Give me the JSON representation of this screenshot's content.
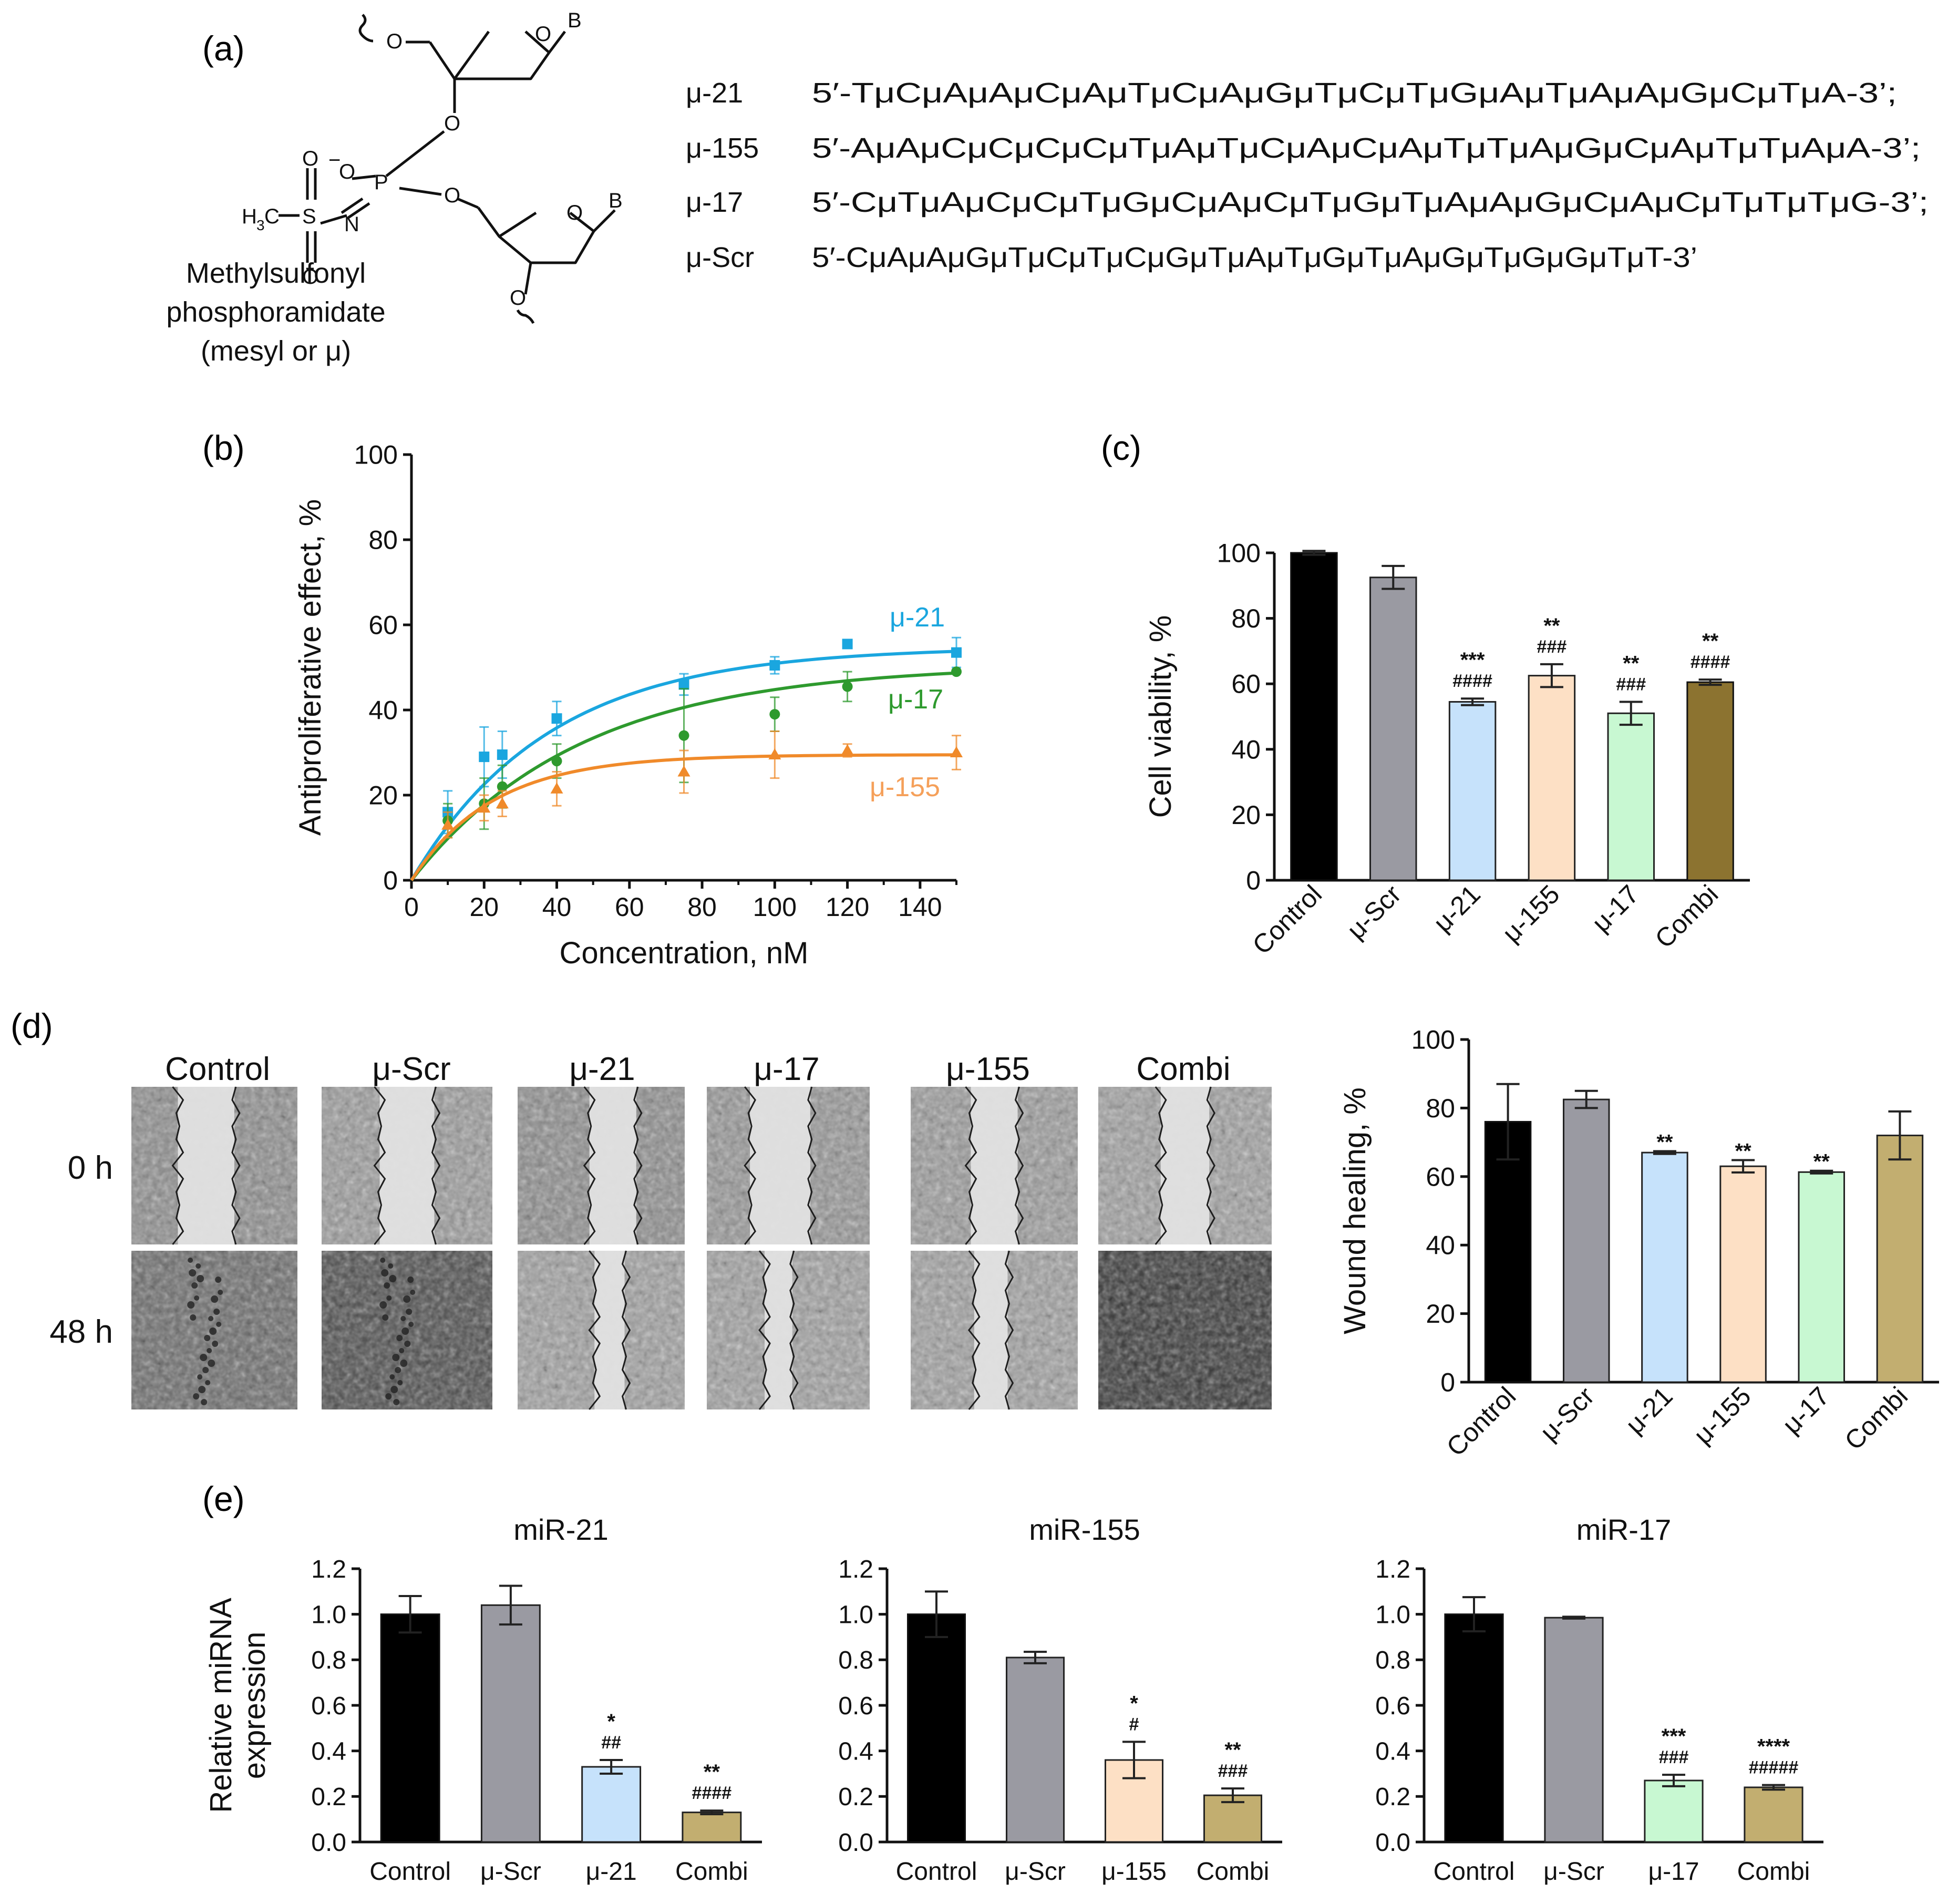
{
  "panels": {
    "a": "(a)",
    "b": "(b)",
    "c": "(c)",
    "d": "(d)",
    "e": "(e)"
  },
  "structure": {
    "name_line1": "Methylsulfonyl",
    "name_line2": "phosphoramidate",
    "name_line3": "(mesyl or μ)",
    "atoms": {
      "B": "B",
      "O": "O",
      "P": "P",
      "N": "N",
      "S": "S",
      "minus": "−",
      "methyl": "H",
      "methyl_sub": "3",
      "methyl_c": "C"
    }
  },
  "sequences": [
    {
      "name": "μ-21",
      "seq": "5′-TμCμAμAμCμAμTμCμAμGμTμCμTμGμAμTμAμAμGμCμTμA-3’;"
    },
    {
      "name": "μ-155",
      "seq": "5′-AμAμCμCμCμCμTμAμTμCμAμCμAμTμTμAμGμCμAμTμTμAμA-3’;"
    },
    {
      "name": "μ-17",
      "seq": "5′-CμTμAμCμCμTμGμCμAμCμTμGμTμAμAμGμCμAμCμTμTμTμG-3’;"
    },
    {
      "name": "μ-Scr",
      "seq": "5′-CμAμAμGμTμCμTμCμGμTμAμTμGμTμAμGμTμGμGμTμT-3’"
    }
  ],
  "colors": {
    "control": "#000000",
    "scr": "#9a9aa2",
    "mu21": "#c6e2fb",
    "mu155": "#fde0c5",
    "mu17": "#c8f8d2",
    "combi_dark": "#8c7330",
    "combi_light": "#c2ae70",
    "line21": "#1aa6df",
    "line17": "#2e9a2e",
    "line155": "#f08a2a",
    "label155": "#f5a05a"
  },
  "microscopy": {
    "columns": [
      "Control",
      "μ-Scr",
      "μ-21",
      "μ-17",
      "μ-155",
      "Combi"
    ],
    "rows": [
      "0 h",
      "48 h"
    ]
  },
  "chart_data": [
    {
      "id": "b",
      "type": "scatter",
      "xlabel": "Concentration, nM",
      "ylabel": "Antiproliferative effect, %",
      "xlim": [
        0,
        150
      ],
      "ylim": [
        0,
        100
      ],
      "xticks": [
        "0",
        "20",
        "40",
        "60",
        "80",
        "100",
        "120",
        "140"
      ],
      "yticks": [
        "0",
        "20",
        "40",
        "60",
        "80",
        "100"
      ],
      "series": [
        {
          "name": "μ-21",
          "x": [
            10,
            20,
            25,
            40,
            75,
            100,
            120,
            150
          ],
          "y": [
            16,
            29,
            29.5,
            38,
            46,
            50.5,
            55.5,
            53.5
          ],
          "err": [
            5,
            7,
            5.5,
            4,
            2.5,
            2,
            0,
            3.5
          ],
          "fit_plateau": 54.8,
          "fit_k": 0.0265
        },
        {
          "name": "μ-17",
          "x": [
            10,
            20,
            25,
            40,
            75,
            100,
            120,
            150
          ],
          "y": [
            14,
            18,
            22,
            28,
            34,
            39,
            45.5,
            49
          ],
          "err": [
            4,
            6,
            5,
            4,
            11,
            4,
            3.5,
            0
          ],
          "fit_plateau": 50.7,
          "fit_k": 0.0215
        },
        {
          "name": "μ-155",
          "x": [
            10,
            20,
            25,
            40,
            75,
            100,
            120,
            150
          ],
          "y": [
            13,
            17,
            18,
            21.5,
            25.5,
            29.5,
            30.5,
            30
          ],
          "err": [
            3,
            3,
            3,
            4,
            5,
            5.5,
            1.5,
            4
          ],
          "fit_plateau": 29.5,
          "fit_k": 0.0448
        }
      ]
    },
    {
      "id": "c",
      "type": "bar",
      "ylabel": "Cell viability, %",
      "ylim": [
        0,
        100
      ],
      "yticks": [
        "0",
        "20",
        "40",
        "60",
        "80",
        "100"
      ],
      "categories": [
        "Control",
        "μ-Scr",
        "μ-21",
        "μ-155",
        "μ-17",
        "Combi"
      ],
      "values": [
        100,
        92.5,
        54.5,
        62.5,
        51,
        60.5
      ],
      "err": [
        0.6,
        3.5,
        1,
        3.5,
        3.5,
        0.8
      ],
      "star": [
        "",
        "",
        "***",
        "**",
        "**",
        "**"
      ],
      "hash": [
        "",
        "",
        "####",
        "###",
        "###",
        "####"
      ]
    },
    {
      "id": "d",
      "type": "bar",
      "ylabel": "Wound healing, %",
      "ylim": [
        0,
        100
      ],
      "yticks": [
        "0",
        "20",
        "40",
        "60",
        "80",
        "100"
      ],
      "categories": [
        "Control",
        "μ-Scr",
        "μ-21",
        "μ-155",
        "μ-17",
        "Combi"
      ],
      "values": [
        76,
        82.5,
        67,
        63,
        61.3,
        72
      ],
      "err": [
        11,
        2.5,
        0.4,
        1.8,
        0.4,
        7
      ],
      "star": [
        "",
        "",
        "**",
        "**",
        "**",
        ""
      ],
      "hash": [
        "",
        "",
        "",
        "",
        "",
        ""
      ]
    },
    {
      "id": "e1",
      "type": "bar",
      "title": "miR-21",
      "ylabel": "Relative miRNA expression",
      "ylim": [
        0,
        1.2
      ],
      "yticks": [
        "0.0",
        "0.2",
        "0.4",
        "0.6",
        "0.8",
        "1.0",
        "1.2"
      ],
      "categories": [
        "Control",
        "μ-Scr",
        "μ-21",
        "Combi"
      ],
      "values": [
        1.0,
        1.04,
        0.33,
        0.13
      ],
      "err": [
        0.08,
        0.085,
        0.03,
        0.008
      ],
      "star": [
        "",
        "",
        "*",
        "**"
      ],
      "hash": [
        "",
        "",
        "##",
        "####"
      ]
    },
    {
      "id": "e2",
      "type": "bar",
      "title": "miR-155",
      "ylim": [
        0,
        1.2
      ],
      "yticks": [
        "0.0",
        "0.2",
        "0.4",
        "0.6",
        "0.8",
        "1.0",
        "1.2"
      ],
      "categories": [
        "Control",
        "μ-Scr",
        "μ-155",
        "Combi"
      ],
      "values": [
        1.0,
        0.81,
        0.36,
        0.205
      ],
      "err": [
        0.1,
        0.025,
        0.08,
        0.03
      ],
      "star": [
        "",
        "",
        "*",
        "**"
      ],
      "hash": [
        "",
        "",
        "#",
        "###"
      ]
    },
    {
      "id": "e3",
      "type": "bar",
      "title": "miR-17",
      "ylim": [
        0,
        1.2
      ],
      "yticks": [
        "0.0",
        "0.2",
        "0.4",
        "0.6",
        "0.8",
        "1.0",
        "1.2"
      ],
      "categories": [
        "Control",
        "μ-Scr",
        "μ-17",
        "Combi"
      ],
      "values": [
        1.0,
        0.985,
        0.27,
        0.24
      ],
      "err": [
        0.075,
        0.004,
        0.025,
        0.01
      ],
      "star": [
        "",
        "",
        "***",
        "****"
      ],
      "hash": [
        "",
        "",
        "###",
        "#####"
      ]
    }
  ]
}
